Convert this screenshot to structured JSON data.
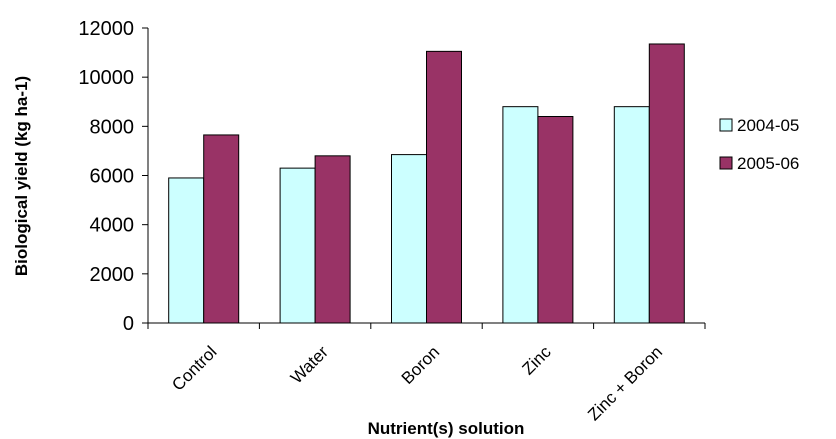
{
  "chart_data": {
    "type": "bar",
    "title": "",
    "xlabel": "Nutrient(s) solution",
    "ylabel": "Biological yield (kg ha-1)",
    "categories": [
      "Control",
      "Water",
      "Boron",
      "Zinc",
      "Zinc + Boron"
    ],
    "series": [
      {
        "name": "2004-05",
        "values": [
          5900,
          6300,
          6850,
          8800,
          8800
        ],
        "color": "#ccffff"
      },
      {
        "name": "2005-06",
        "values": [
          7650,
          6800,
          11050,
          8400,
          11350
        ],
        "color": "#993366"
      }
    ],
    "ylim": [
      0,
      12000
    ],
    "yticks": [
      0,
      2000,
      4000,
      6000,
      8000,
      10000,
      12000
    ],
    "grid": false,
    "legend_position": "right"
  }
}
